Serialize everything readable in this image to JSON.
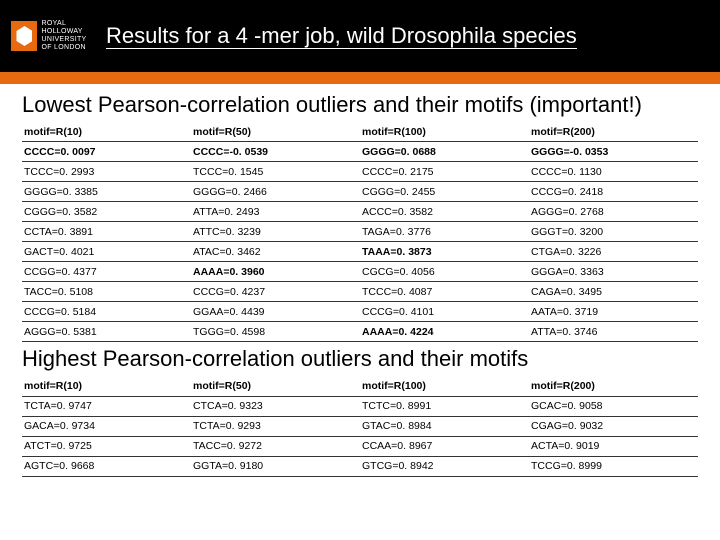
{
  "logo": {
    "line1": "ROYAL",
    "line2": "HOLLOWAY",
    "line3": "UNIVERSITY",
    "line4": "OF LONDON"
  },
  "title": "Results for a 4 -mer job, wild Drosophila species",
  "section1_title": "Lowest Pearson-correlation outliers and their motifs (important!)",
  "section2_title": "Highest Pearson-correlation outliers and their motifs",
  "colors": {
    "header_bg": "#000000",
    "accent": "#e86a10",
    "text": "#000000",
    "background": "#ffffff"
  },
  "table1": {
    "headers": [
      "motif=R(10)",
      "motif=R(50)",
      "motif=R(100)",
      "motif=R(200)"
    ],
    "rows": [
      [
        {
          "t": "CCCC=0. 0097",
          "b": true
        },
        {
          "t": "CCCC=-0. 0539",
          "b": true
        },
        {
          "t": "GGGG=0. 0688",
          "b": true
        },
        {
          "t": "GGGG=-0. 0353",
          "b": true
        }
      ],
      [
        {
          "t": "TCCC=0. 2993",
          "b": false
        },
        {
          "t": "TCCC=0. 1545",
          "b": false
        },
        {
          "t": "CCCC=0. 2175",
          "b": false
        },
        {
          "t": "CCCC=0. 1130",
          "b": false
        }
      ],
      [
        {
          "t": "GGGG=0. 3385",
          "b": false
        },
        {
          "t": "GGGG=0. 2466",
          "b": false
        },
        {
          "t": "CGGG=0. 2455",
          "b": false
        },
        {
          "t": "CCCG=0. 2418",
          "b": false
        }
      ],
      [
        {
          "t": "CGGG=0. 3582",
          "b": false
        },
        {
          "t": "ATTA=0. 2493",
          "b": false
        },
        {
          "t": "ACCC=0. 3582",
          "b": false
        },
        {
          "t": "AGGG=0. 2768",
          "b": false
        }
      ],
      [
        {
          "t": "CCTA=0. 3891",
          "b": false
        },
        {
          "t": "ATTC=0. 3239",
          "b": false
        },
        {
          "t": "TAGA=0. 3776",
          "b": false
        },
        {
          "t": "GGGT=0. 3200",
          "b": false
        }
      ],
      [
        {
          "t": "GACT=0. 4021",
          "b": false
        },
        {
          "t": "ATAC=0. 3462",
          "b": false
        },
        {
          "t": "TAAA=0. 3873",
          "b": true
        },
        {
          "t": "CTGA=0. 3226",
          "b": false
        }
      ],
      [
        {
          "t": "CCGG=0. 4377",
          "b": false
        },
        {
          "t": "AAAA=0. 3960",
          "b": true
        },
        {
          "t": "CGCG=0. 4056",
          "b": false
        },
        {
          "t": "GGGA=0. 3363",
          "b": false
        }
      ],
      [
        {
          "t": "TACC=0. 5108",
          "b": false
        },
        {
          "t": "CCCG=0. 4237",
          "b": false
        },
        {
          "t": "TCCC=0. 4087",
          "b": false
        },
        {
          "t": "CAGA=0. 3495",
          "b": false
        }
      ],
      [
        {
          "t": "CCCG=0. 5184",
          "b": false
        },
        {
          "t": "GGAA=0. 4439",
          "b": false
        },
        {
          "t": "CCCG=0. 4101",
          "b": false
        },
        {
          "t": "AATA=0. 3719",
          "b": false
        }
      ],
      [
        {
          "t": "AGGG=0. 5381",
          "b": false
        },
        {
          "t": "TGGG=0. 4598",
          "b": false
        },
        {
          "t": "AAAA=0. 4224",
          "b": true
        },
        {
          "t": "ATTA=0. 3746",
          "b": false
        }
      ]
    ]
  },
  "table2": {
    "headers": [
      "motif=R(10)",
      "motif=R(50)",
      "motif=R(100)",
      "motif=R(200)"
    ],
    "rows": [
      [
        {
          "t": "TCTA=0. 9747",
          "b": false
        },
        {
          "t": "CTCA=0. 9323",
          "b": false
        },
        {
          "t": "TCTC=0. 8991",
          "b": false
        },
        {
          "t": "GCAC=0. 9058",
          "b": false
        }
      ],
      [
        {
          "t": "GACA=0. 9734",
          "b": false
        },
        {
          "t": "TCTA=0. 9293",
          "b": false
        },
        {
          "t": "GTAC=0. 8984",
          "b": false
        },
        {
          "t": "CGAG=0. 9032",
          "b": false
        }
      ],
      [
        {
          "t": "ATCT=0. 9725",
          "b": false
        },
        {
          "t": "TACC=0. 9272",
          "b": false
        },
        {
          "t": "CCAA=0. 8967",
          "b": false
        },
        {
          "t": "ACTA=0. 9019",
          "b": false
        }
      ],
      [
        {
          "t": "AGTC=0. 9668",
          "b": false
        },
        {
          "t": "GGTA=0. 9180",
          "b": false
        },
        {
          "t": "GTCG=0. 8942",
          "b": false
        },
        {
          "t": "TCCG=0. 8999",
          "b": false
        }
      ]
    ]
  }
}
